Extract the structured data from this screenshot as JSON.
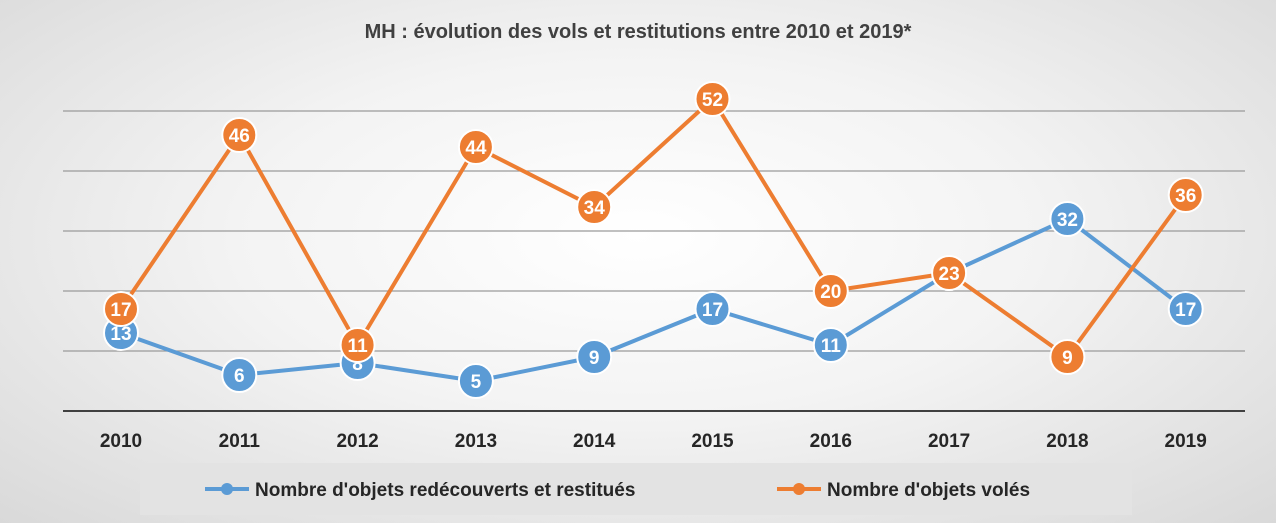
{
  "chart_data": {
    "type": "line",
    "title": "MH : évolution des vols et  restitutions entre 2010 et 2019*",
    "categories": [
      "2010",
      "2011",
      "2012",
      "2013",
      "2014",
      "2015",
      "2016",
      "2017",
      "2018",
      "2019"
    ],
    "series": [
      {
        "name": "Nombre d'objets redécouverts et restitués",
        "values": [
          13,
          6,
          8,
          5,
          9,
          17,
          11,
          23,
          32,
          17
        ],
        "color": "#5b9bd5"
      },
      {
        "name": "Nombre d'objets volés",
        "values": [
          17,
          46,
          11,
          44,
          34,
          52,
          20,
          23,
          9,
          36
        ],
        "color": "#ed7d31"
      }
    ],
    "ylim": [
      0,
      60
    ],
    "gridlines": [
      10,
      20,
      30,
      40,
      50
    ],
    "grid": true,
    "data_labels": true,
    "legend_position": "bottom"
  }
}
